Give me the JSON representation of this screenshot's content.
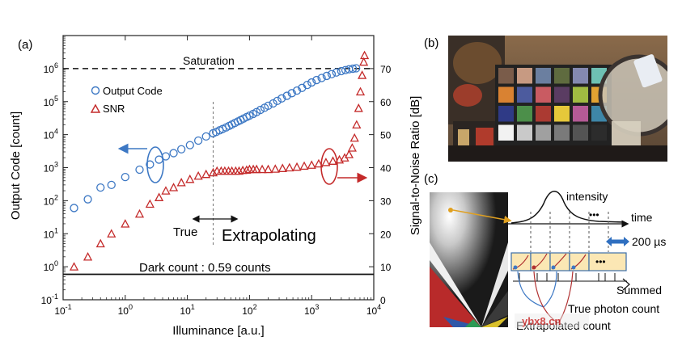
{
  "panels": {
    "a": "(a)",
    "b": "(b)",
    "c": "(c)"
  },
  "chart_data": {
    "type": "scatter",
    "xlabel": "Illuminance [a.u.]",
    "ylabel_left": "Output Code [count]",
    "ylabel_right": "Signal-to-Noise Ratio [dB]",
    "x_scale": "log",
    "xlim": [
      0.1,
      10000
    ],
    "x_ticks": [
      {
        "value": 0.1,
        "base": "10",
        "exp": "-1"
      },
      {
        "value": 1,
        "base": "10",
        "exp": "0"
      },
      {
        "value": 10,
        "base": "10",
        "exp": "1"
      },
      {
        "value": 100,
        "base": "10",
        "exp": "2"
      },
      {
        "value": 1000,
        "base": "10",
        "exp": "3"
      },
      {
        "value": 10000,
        "base": "10",
        "exp": "4"
      }
    ],
    "y_left_scale": "log",
    "y_left_lim": [
      0.1,
      10000000
    ],
    "y_left_ticks": [
      {
        "value": 0.1,
        "base": "10",
        "exp": "-1"
      },
      {
        "value": 1,
        "base": "10",
        "exp": "0"
      },
      {
        "value": 10,
        "base": "10",
        "exp": "1"
      },
      {
        "value": 100,
        "base": "10",
        "exp": "2"
      },
      {
        "value": 1000,
        "base": "10",
        "exp": "3"
      },
      {
        "value": 10000,
        "base": "10",
        "exp": "4"
      },
      {
        "value": 100000,
        "base": "10",
        "exp": "5"
      },
      {
        "value": 1000000,
        "base": "10",
        "exp": "6"
      }
    ],
    "y_right_lim": [
      0,
      80
    ],
    "y_right_ticks": [
      "0",
      "10",
      "20",
      "30",
      "40",
      "50",
      "60",
      "70"
    ],
    "series": [
      {
        "name": "Output Code",
        "axis": "left",
        "marker": "circle",
        "color": "#3d78c4",
        "points": [
          [
            0.15,
            60
          ],
          [
            0.25,
            110
          ],
          [
            0.4,
            250
          ],
          [
            0.6,
            300
          ],
          [
            1.0,
            520
          ],
          [
            1.7,
            870
          ],
          [
            2.5,
            1250
          ],
          [
            3.5,
            1750
          ],
          [
            4.5,
            2200
          ],
          [
            6,
            2750
          ],
          [
            8,
            3600
          ],
          [
            11,
            4800
          ],
          [
            15,
            6600
          ],
          [
            20,
            8800
          ],
          [
            26,
            11000
          ],
          [
            29,
            12000
          ],
          [
            33,
            13500
          ],
          [
            37,
            14800
          ],
          [
            42,
            16500
          ],
          [
            47,
            18300
          ],
          [
            52,
            20200
          ],
          [
            58,
            22500
          ],
          [
            65,
            25000
          ],
          [
            72,
            27500
          ],
          [
            80,
            30500
          ],
          [
            90,
            34000
          ],
          [
            100,
            37500
          ],
          [
            115,
            42500
          ],
          [
            130,
            48000
          ],
          [
            150,
            56000
          ],
          [
            175,
            65000
          ],
          [
            200,
            75000
          ],
          [
            240,
            88000
          ],
          [
            280,
            105000
          ],
          [
            330,
            125000
          ],
          [
            400,
            150000
          ],
          [
            480,
            180000
          ],
          [
            580,
            215000
          ],
          [
            700,
            260000
          ],
          [
            850,
            320000
          ],
          [
            1000,
            380000
          ],
          [
            1200,
            450000
          ],
          [
            1450,
            520000
          ],
          [
            1750,
            600000
          ],
          [
            2100,
            680000
          ],
          [
            2500,
            760000
          ],
          [
            3000,
            840000
          ],
          [
            3500,
            900000
          ],
          [
            4000,
            950000
          ],
          [
            4600,
            990000
          ],
          [
            5200,
            1020000
          ]
        ]
      },
      {
        "name": "SNR",
        "axis": "right",
        "marker": "triangle",
        "color": "#c42a2a",
        "points": [
          [
            0.15,
            10
          ],
          [
            0.25,
            13
          ],
          [
            0.4,
            17
          ],
          [
            0.6,
            20
          ],
          [
            1.0,
            23
          ],
          [
            1.7,
            26
          ],
          [
            2.5,
            29
          ],
          [
            3.5,
            31
          ],
          [
            4.5,
            33
          ],
          [
            6,
            34
          ],
          [
            8,
            35.5
          ],
          [
            11,
            36.5
          ],
          [
            15,
            37.5
          ],
          [
            20,
            38
          ],
          [
            26,
            38.5
          ],
          [
            30,
            39
          ],
          [
            35,
            39
          ],
          [
            40,
            39
          ],
          [
            46,
            39
          ],
          [
            52,
            39
          ],
          [
            60,
            39
          ],
          [
            68,
            39
          ],
          [
            78,
            39.2
          ],
          [
            90,
            39.3
          ],
          [
            100,
            39.5
          ],
          [
            115,
            39.5
          ],
          [
            130,
            39.5
          ],
          [
            160,
            39.5
          ],
          [
            200,
            39.5
          ],
          [
            260,
            39.6
          ],
          [
            340,
            39.8
          ],
          [
            440,
            40
          ],
          [
            580,
            40.2
          ],
          [
            760,
            40.5
          ],
          [
            1000,
            40.8
          ],
          [
            1300,
            41.2
          ],
          [
            1700,
            41.6
          ],
          [
            2200,
            42
          ],
          [
            2800,
            42.4
          ],
          [
            3400,
            43
          ],
          [
            4000,
            44
          ],
          [
            4500,
            46
          ],
          [
            4900,
            49
          ],
          [
            5300,
            53
          ],
          [
            5700,
            58
          ],
          [
            6100,
            63
          ],
          [
            6500,
            68
          ],
          [
            6900,
            72
          ],
          [
            7100,
            74
          ]
        ]
      }
    ],
    "legend": [
      {
        "label": "Output Code",
        "marker": "circle"
      },
      {
        "label": "SNR",
        "marker": "triangle"
      }
    ],
    "annotations": {
      "saturation_label": "Saturation",
      "saturation_value": 1000000,
      "dark_count_label": "Dark count : 0.59 counts",
      "dark_count_value": 0.59,
      "true_label": "True",
      "extrapolating_label": "Extrapolating",
      "boundary_x": 26
    }
  },
  "timing_diagram": {
    "intensity_label": "intensity",
    "time_label": "time",
    "duration_label": "200 µs",
    "ellipsis": "•••",
    "summed_label": "Summed",
    "true_photon_label": "True photon count",
    "extrapolated_label": "Extrapolated count"
  },
  "colors": {
    "output_code": "#3d78c4",
    "snr": "#c42a2a",
    "accent_arrow": "#2f6fc0",
    "frame_fill": "#fbe7b4",
    "frame_stroke": "#3c6fa8"
  },
  "watermark": "ybx8.cn"
}
